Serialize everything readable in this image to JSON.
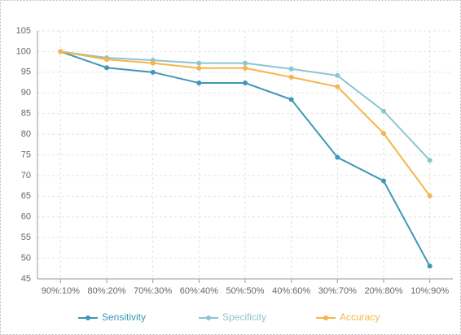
{
  "chart_data": {
    "type": "line",
    "categories": [
      "90%:10%",
      "80%:20%",
      "70%:30%",
      "60%:40%",
      "50%:50%",
      "40%:60%",
      "30%:70%",
      "20%:80%",
      "10%:90%"
    ],
    "series": [
      {
        "name": "Sensitivity",
        "color": "#3d98b8",
        "values": [
          100,
          96.1,
          95,
          92.4,
          92.4,
          88.4,
          74.4,
          68.7,
          48.1
        ]
      },
      {
        "name": "Specificity",
        "color": "#8cc5d0",
        "values": [
          100,
          98.5,
          97.9,
          97.2,
          97.2,
          95.8,
          94.2,
          85.6,
          73.7
        ]
      },
      {
        "name": "Accuracy",
        "color": "#f5b54a",
        "values": [
          100,
          98.1,
          97.2,
          96.0,
          96.0,
          93.8,
          91.5,
          80.2,
          65.1
        ]
      }
    ],
    "ylim": [
      45,
      105
    ],
    "yticks": [
      45,
      50,
      55,
      60,
      65,
      70,
      75,
      80,
      85,
      90,
      95,
      100,
      105
    ],
    "grid": true,
    "legend": "bottom"
  }
}
